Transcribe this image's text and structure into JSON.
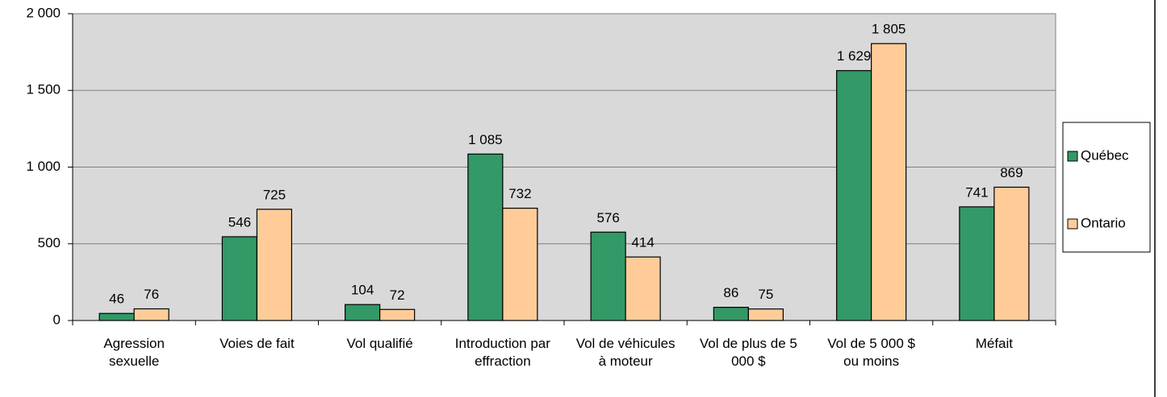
{
  "chart_data": {
    "type": "bar",
    "categories": [
      "Agression sexuelle",
      "Voies de fait",
      "Vol qualifié",
      "Introduction par effraction",
      "Vol de véhicules à moteur",
      "Vol de plus de 5 000 $",
      "Vol de 5 000 $ ou moins",
      "Méfait"
    ],
    "series": [
      {
        "name": "Québec",
        "color": "#339966",
        "values": [
          46,
          546,
          104,
          1085,
          576,
          86,
          1629,
          741
        ],
        "value_labels": [
          "46",
          "546",
          "104",
          "1 085",
          "576",
          "86",
          "1 629",
          "741"
        ]
      },
      {
        "name": "Ontario",
        "color": "#ffcc99",
        "values": [
          76,
          725,
          72,
          732,
          414,
          75,
          1805,
          869
        ],
        "value_labels": [
          "76",
          "725",
          "72",
          "732",
          "414",
          "75",
          "1 805",
          "869"
        ]
      }
    ],
    "ylim": [
      0,
      2000
    ],
    "yticks": [
      0,
      500,
      {
        "value": 1000,
        "label": "1 000"
      },
      {
        "value": 1500,
        "label": "1 500"
      },
      {
        "value": 2000,
        "label": "2 000"
      }
    ],
    "grid": true,
    "legend": "right"
  }
}
